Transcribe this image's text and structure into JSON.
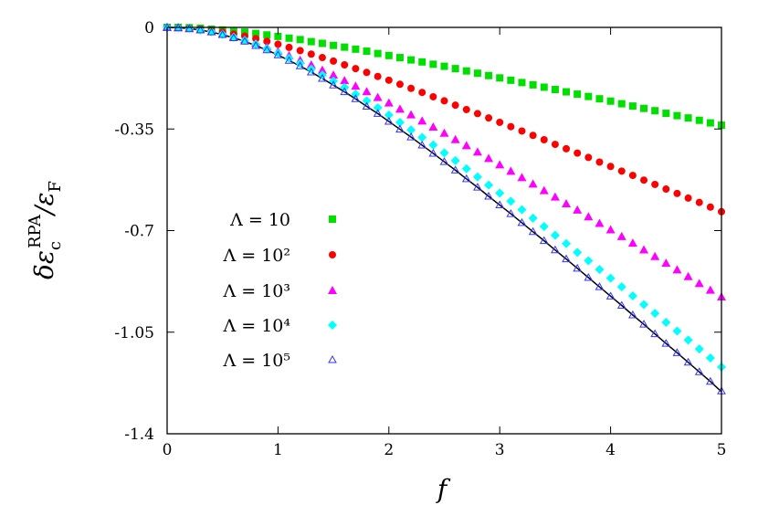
{
  "chart_data": {
    "type": "scatter",
    "xlabel": "f",
    "ylabel": {
      "main": "δε",
      "sub": "c",
      "sup": "RPA",
      "rest": "/ε",
      "sub2": "F"
    },
    "xlim": [
      0,
      5
    ],
    "ylim": [
      -1.4,
      0
    ],
    "xticks": [
      "0",
      "1",
      "2",
      "3",
      "4",
      "5"
    ],
    "yticks": [
      "0",
      "-0.35",
      "-0.7",
      "-1.05",
      "-1.4"
    ],
    "ytick_values": [
      0,
      -0.35,
      -0.7,
      -1.05,
      -1.4
    ],
    "grid": false,
    "legend_position": "left-middle",
    "x": [
      0,
      0.1,
      0.2,
      0.3,
      0.4,
      0.5,
      0.6,
      0.7,
      0.8,
      0.9,
      1.0,
      1.1,
      1.2,
      1.3,
      1.4,
      1.5,
      1.6,
      1.7,
      1.8,
      1.9,
      2.0,
      2.1,
      2.2,
      2.3,
      2.4,
      2.5,
      2.6,
      2.7,
      2.8,
      2.9,
      3.0,
      3.1,
      3.2,
      3.3,
      3.4,
      3.5,
      3.6,
      3.7,
      3.8,
      3.9,
      4.0,
      4.1,
      4.2,
      4.3,
      4.4,
      4.5,
      4.6,
      4.7,
      4.8,
      4.9,
      5.0
    ],
    "series": [
      {
        "name": "Λ = 10",
        "marker": "square",
        "color": "#00e000",
        "values": [
          0,
          0,
          -0.001,
          -0.003,
          -0.006,
          -0.009,
          -0.012,
          -0.016,
          -0.021,
          -0.026,
          -0.031,
          -0.037,
          -0.042,
          -0.049,
          -0.055,
          -0.062,
          -0.068,
          -0.075,
          -0.082,
          -0.09,
          -0.097,
          -0.104,
          -0.112,
          -0.119,
          -0.127,
          -0.134,
          -0.142,
          -0.15,
          -0.158,
          -0.166,
          -0.174,
          -0.182,
          -0.19,
          -0.198,
          -0.206,
          -0.214,
          -0.222,
          -0.23,
          -0.238,
          -0.246,
          -0.254,
          -0.263,
          -0.271,
          -0.279,
          -0.287,
          -0.296,
          -0.304,
          -0.312,
          -0.32,
          -0.329,
          -0.337
        ]
      },
      {
        "name": "Λ = 10²",
        "marker": "circle",
        "color": "#ff0000",
        "values": [
          0,
          -0.001,
          -0.003,
          -0.006,
          -0.01,
          -0.016,
          -0.023,
          -0.03,
          -0.039,
          -0.048,
          -0.058,
          -0.069,
          -0.08,
          -0.092,
          -0.104,
          -0.116,
          -0.129,
          -0.142,
          -0.155,
          -0.169,
          -0.182,
          -0.196,
          -0.21,
          -0.224,
          -0.239,
          -0.253,
          -0.268,
          -0.283,
          -0.297,
          -0.312,
          -0.327,
          -0.342,
          -0.357,
          -0.372,
          -0.387,
          -0.403,
          -0.418,
          -0.433,
          -0.448,
          -0.464,
          -0.479,
          -0.495,
          -0.51,
          -0.526,
          -0.541,
          -0.557,
          -0.572,
          -0.588,
          -0.603,
          -0.619,
          -0.635
        ]
      },
      {
        "name": "Λ = 10³",
        "marker": "triangle",
        "color": "#ff00ff",
        "values": [
          0,
          -0.001,
          -0.004,
          -0.008,
          -0.014,
          -0.022,
          -0.032,
          -0.042,
          -0.054,
          -0.067,
          -0.082,
          -0.097,
          -0.113,
          -0.129,
          -0.147,
          -0.164,
          -0.183,
          -0.202,
          -0.221,
          -0.241,
          -0.26,
          -0.281,
          -0.301,
          -0.322,
          -0.343,
          -0.364,
          -0.386,
          -0.407,
          -0.429,
          -0.451,
          -0.473,
          -0.495,
          -0.517,
          -0.539,
          -0.562,
          -0.584,
          -0.607,
          -0.629,
          -0.652,
          -0.675,
          -0.697,
          -0.72,
          -0.743,
          -0.766,
          -0.789,
          -0.812,
          -0.835,
          -0.858,
          -0.882,
          -0.905,
          -0.928
        ]
      },
      {
        "name": "Λ = 10⁴",
        "marker": "diamond",
        "color": "#00ffff",
        "values": [
          0,
          -0.001,
          -0.004,
          -0.009,
          -0.015,
          -0.024,
          -0.034,
          -0.045,
          -0.058,
          -0.073,
          -0.089,
          -0.106,
          -0.124,
          -0.144,
          -0.164,
          -0.185,
          -0.207,
          -0.23,
          -0.253,
          -0.277,
          -0.302,
          -0.327,
          -0.353,
          -0.379,
          -0.405,
          -0.432,
          -0.459,
          -0.487,
          -0.515,
          -0.543,
          -0.571,
          -0.599,
          -0.628,
          -0.657,
          -0.686,
          -0.716,
          -0.745,
          -0.775,
          -0.804,
          -0.834,
          -0.864,
          -0.894,
          -0.925,
          -0.955,
          -0.985,
          -1.016,
          -1.046,
          -1.077,
          -1.108,
          -1.139,
          -1.17
        ]
      },
      {
        "name": "Λ = 10⁵",
        "marker": "open-triangle",
        "color": "#3333ff",
        "values": [
          0,
          -0.001,
          -0.004,
          -0.009,
          -0.016,
          -0.025,
          -0.036,
          -0.048,
          -0.063,
          -0.078,
          -0.095,
          -0.114,
          -0.133,
          -0.154,
          -0.176,
          -0.199,
          -0.222,
          -0.246,
          -0.272,
          -0.297,
          -0.324,
          -0.351,
          -0.378,
          -0.406,
          -0.434,
          -0.463,
          -0.492,
          -0.522,
          -0.551,
          -0.582,
          -0.612,
          -0.642,
          -0.673,
          -0.704,
          -0.735,
          -0.767,
          -0.798,
          -0.83,
          -0.862,
          -0.894,
          -0.926,
          -0.958,
          -0.991,
          -1.023,
          -1.056,
          -1.089,
          -1.121,
          -1.154,
          -1.187,
          -1.22,
          -1.253
        ]
      }
    ],
    "curve": {
      "color": "#000000",
      "values": [
        0,
        -0.001,
        -0.004,
        -0.009,
        -0.016,
        -0.025,
        -0.036,
        -0.048,
        -0.063,
        -0.078,
        -0.095,
        -0.114,
        -0.133,
        -0.154,
        -0.176,
        -0.199,
        -0.222,
        -0.246,
        -0.272,
        -0.297,
        -0.324,
        -0.351,
        -0.378,
        -0.406,
        -0.434,
        -0.463,
        -0.492,
        -0.522,
        -0.551,
        -0.582,
        -0.612,
        -0.642,
        -0.673,
        -0.704,
        -0.735,
        -0.767,
        -0.798,
        -0.83,
        -0.862,
        -0.894,
        -0.926,
        -0.958,
        -0.991,
        -1.023,
        -1.056,
        -1.089,
        -1.121,
        -1.154,
        -1.187,
        -1.22,
        -1.255
      ]
    }
  }
}
